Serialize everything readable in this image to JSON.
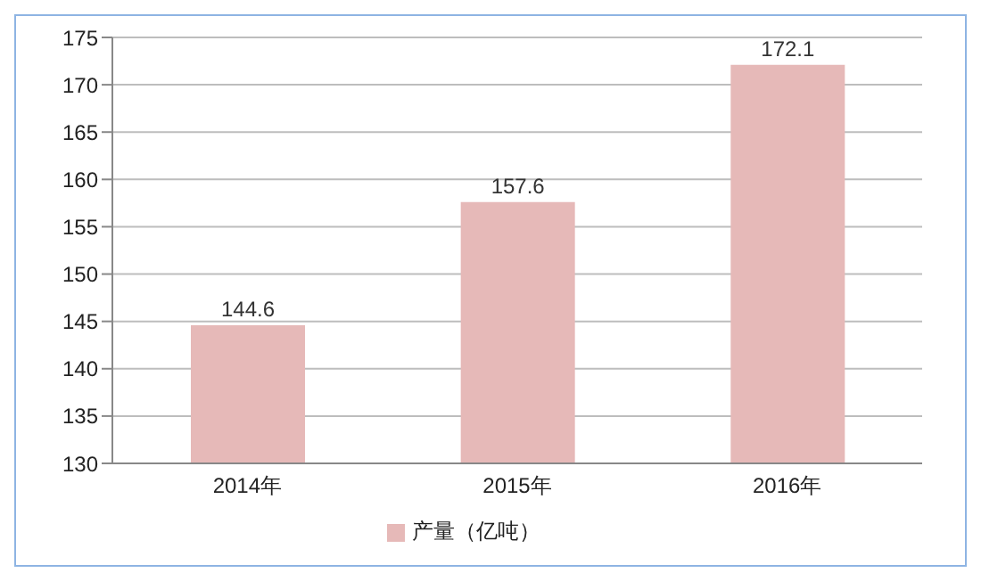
{
  "chart_data": {
    "type": "bar",
    "categories": [
      "2014年",
      "2015年",
      "2016年"
    ],
    "series": [
      {
        "name": "产量（亿吨）",
        "color": "#e6b9b8",
        "values": [
          144.6,
          157.6,
          172.1
        ]
      }
    ],
    "ylim": [
      130,
      175
    ],
    "yticks": [
      130,
      135,
      140,
      145,
      150,
      155,
      160,
      165,
      170,
      175
    ],
    "grid": "y",
    "legend": "bottom",
    "data_labels": true
  }
}
